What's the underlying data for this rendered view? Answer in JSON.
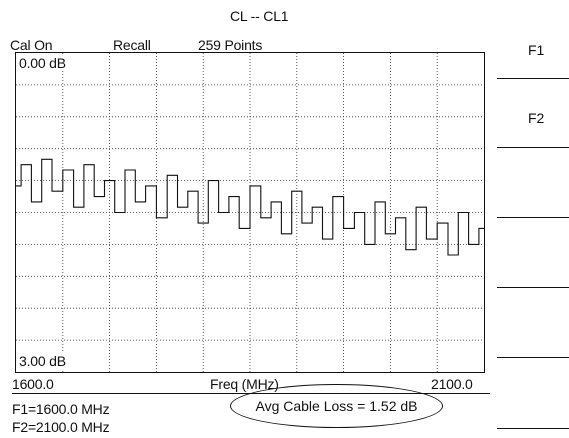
{
  "header": {
    "trace_title": "CL -- CL1",
    "cal_status": "Cal On",
    "recall": "Recall",
    "points": "259 Points"
  },
  "plot": {
    "top_scale": "0.00 dB",
    "bottom_scale": "3.00 dB",
    "x_start": "1600.0",
    "x_label": "Freq (MHz)",
    "x_end": "2100.0",
    "trace_color": "#111111",
    "grid_color": "#333333",
    "grid": "dotted 10 x 10"
  },
  "markers": {
    "f1": "F1=1600.0 MHz",
    "f2": "F2=2100.0 MHz"
  },
  "measurement": {
    "avg_cable_loss": "Avg Cable Loss = 1.52 dB"
  },
  "softkeys": {
    "labels": [
      "F1",
      "F2"
    ]
  },
  "chart_data": {
    "type": "line",
    "xlabel": "Freq (MHz)",
    "xlim": [
      1600.0,
      2100.0
    ],
    "ylim": [
      0.0,
      3.0
    ],
    "y_direction": "downward (0.00 dB at top, 3.00 dB at bottom)",
    "grid": true,
    "series": [
      {
        "x": [
          1600,
          1611,
          1622,
          1633,
          1644,
          1656,
          1667,
          1678,
          1689,
          1700,
          1711,
          1722,
          1733,
          1744,
          1756,
          1767,
          1778,
          1789,
          1800,
          1811,
          1822,
          1833,
          1844,
          1856,
          1867,
          1878,
          1889,
          1900,
          1911,
          1922,
          1933,
          1944,
          1956,
          1967,
          1978,
          1989,
          2000,
          2011,
          2022,
          2033,
          2044,
          2056,
          2067,
          2078,
          2089,
          2100
        ],
        "y": [
          1.25,
          1.05,
          1.4,
          1.0,
          1.3,
          1.1,
          1.45,
          1.05,
          1.35,
          1.2,
          1.5,
          1.1,
          1.4,
          1.25,
          1.55,
          1.15,
          1.45,
          1.3,
          1.6,
          1.2,
          1.5,
          1.35,
          1.65,
          1.25,
          1.55,
          1.4,
          1.7,
          1.3,
          1.6,
          1.45,
          1.75,
          1.35,
          1.65,
          1.5,
          1.8,
          1.4,
          1.7,
          1.55,
          1.85,
          1.45,
          1.75,
          1.6,
          1.9,
          1.5,
          1.8,
          1.65
        ]
      }
    ]
  }
}
